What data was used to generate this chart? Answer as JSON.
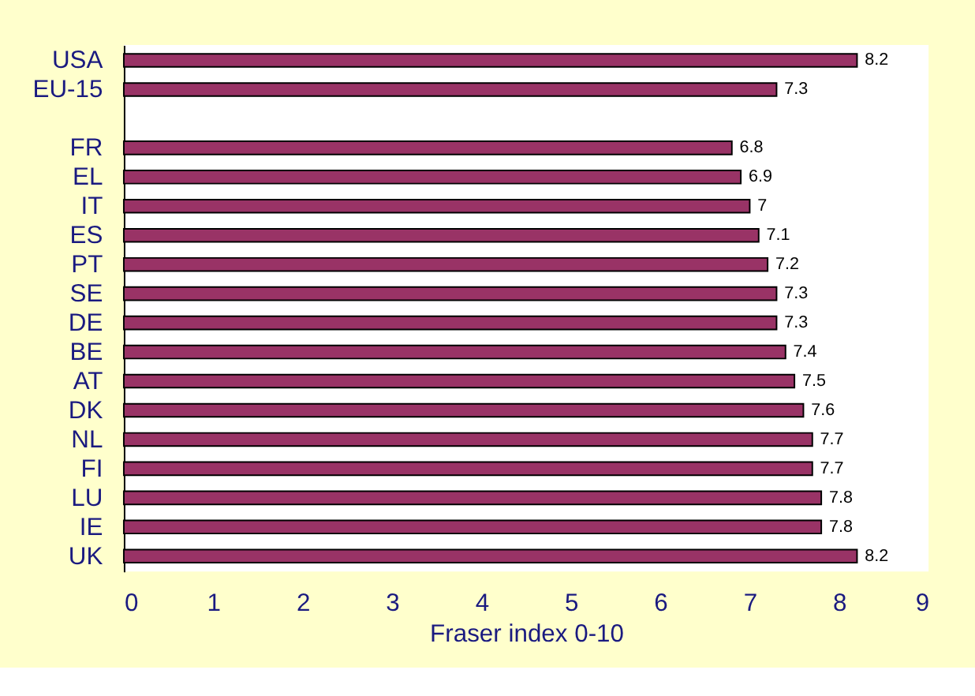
{
  "chart_data": {
    "type": "bar",
    "orientation": "horizontal",
    "xlabel": "Fraser index 0-10",
    "categories": [
      "USA",
      "EU-15",
      null,
      "FR",
      "EL",
      "IT",
      "ES",
      "PT",
      "SE",
      "DE",
      "BE",
      "AT",
      "DK",
      "NL",
      "FI",
      "LU",
      "IE",
      "UK"
    ],
    "values": [
      8.2,
      7.3,
      null,
      6.8,
      6.9,
      7,
      7.1,
      7.2,
      7.3,
      7.3,
      7.4,
      7.5,
      7.6,
      7.7,
      7.7,
      7.8,
      7.8,
      8.2
    ],
    "color": "#993366",
    "xlim": [
      0,
      9
    ],
    "xticks": [
      0,
      1,
      2,
      3,
      4,
      5,
      6,
      7,
      8,
      9
    ],
    "grid": false,
    "data_labels": true
  }
}
